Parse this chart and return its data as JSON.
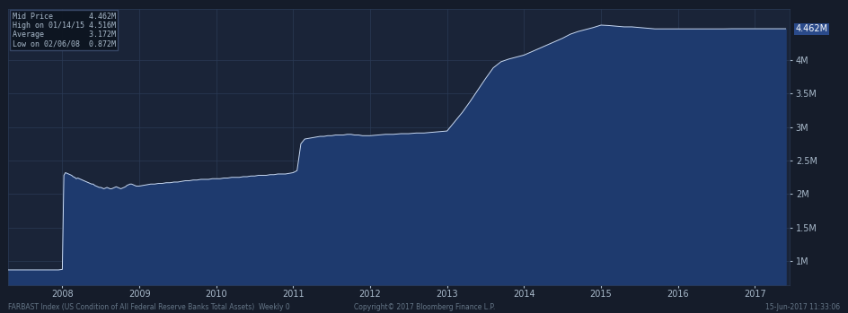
{
  "background_color": "#151c2a",
  "plot_bg_color": "#1a2438",
  "line_color": "#c8d8f0",
  "fill_color": "#1e3a6e",
  "grid_color": "#2a3a55",
  "text_color": "#aabbcc",
  "legend_items": [
    {
      "label": "Mid Price        ",
      "value": "4.462M"
    },
    {
      "label": "High on 01/14/15 ",
      "value": "4.516M"
    },
    {
      "label": "Average          ",
      "value": "3.172M"
    },
    {
      "label": "Low on 02/06/08  ",
      "value": "0.872M"
    }
  ],
  "ylabel_right": "4.462M",
  "yticks": [
    1.0,
    1.5,
    2.0,
    2.5,
    3.0,
    3.5,
    4.0
  ],
  "ylim": [
    0.65,
    4.75
  ],
  "xlabel_bottom": "FARBAST Index (US Condition of All Federal Reserve Banks Total Assets)  Weekly 0",
  "copyright": "Copyright© 2017 Bloomberg Finance L.P.",
  "date_label": "15-Jun-2017 11:33:06",
  "xstart_year": 2007.3,
  "xend_year": 2017.45,
  "xticks": [
    2008,
    2009,
    2010,
    2011,
    2012,
    2013,
    2014,
    2015,
    2016,
    2017
  ],
  "data_x": [
    2007.3,
    2007.35,
    2007.4,
    2007.45,
    2007.5,
    2007.55,
    2007.6,
    2007.65,
    2007.7,
    2007.75,
    2007.8,
    2007.85,
    2007.9,
    2007.95,
    2008.0,
    2008.02,
    2008.04,
    2008.06,
    2008.08,
    2008.1,
    2008.12,
    2008.14,
    2008.16,
    2008.18,
    2008.2,
    2008.22,
    2008.24,
    2008.26,
    2008.28,
    2008.3,
    2008.32,
    2008.34,
    2008.36,
    2008.38,
    2008.4,
    2008.42,
    2008.44,
    2008.46,
    2008.48,
    2008.5,
    2008.52,
    2008.54,
    2008.56,
    2008.58,
    2008.6,
    2008.62,
    2008.64,
    2008.66,
    2008.68,
    2008.7,
    2008.72,
    2008.74,
    2008.76,
    2008.78,
    2008.8,
    2008.82,
    2008.84,
    2008.86,
    2008.88,
    2008.9,
    2008.92,
    2008.94,
    2008.96,
    2008.98,
    2009.0,
    2009.05,
    2009.1,
    2009.15,
    2009.2,
    2009.25,
    2009.3,
    2009.35,
    2009.4,
    2009.45,
    2009.5,
    2009.55,
    2009.6,
    2009.65,
    2009.7,
    2009.75,
    2009.8,
    2009.85,
    2009.9,
    2009.95,
    2010.0,
    2010.05,
    2010.1,
    2010.15,
    2010.2,
    2010.25,
    2010.3,
    2010.35,
    2010.4,
    2010.45,
    2010.5,
    2010.55,
    2010.6,
    2010.65,
    2010.7,
    2010.75,
    2010.8,
    2010.85,
    2010.9,
    2010.95,
    2011.0,
    2011.05,
    2011.1,
    2011.15,
    2011.2,
    2011.25,
    2011.3,
    2011.35,
    2011.4,
    2011.45,
    2011.5,
    2011.55,
    2011.6,
    2011.65,
    2011.7,
    2011.75,
    2011.8,
    2011.85,
    2011.9,
    2011.95,
    2012.0,
    2012.1,
    2012.2,
    2012.3,
    2012.4,
    2012.5,
    2012.6,
    2012.7,
    2012.8,
    2012.9,
    2013.0,
    2013.1,
    2013.2,
    2013.3,
    2013.4,
    2013.5,
    2013.6,
    2013.7,
    2013.8,
    2013.9,
    2014.0,
    2014.1,
    2014.2,
    2014.3,
    2014.4,
    2014.5,
    2014.6,
    2014.7,
    2014.8,
    2014.9,
    2015.0,
    2015.1,
    2015.2,
    2015.3,
    2015.4,
    2015.5,
    2015.6,
    2015.7,
    2015.8,
    2015.9,
    2016.0,
    2016.1,
    2016.2,
    2016.3,
    2016.4,
    2016.5,
    2016.6,
    2016.7,
    2016.8,
    2016.9,
    2017.0,
    2017.1,
    2017.2,
    2017.3,
    2017.4
  ],
  "data_y": [
    0.872,
    0.872,
    0.872,
    0.872,
    0.872,
    0.872,
    0.872,
    0.872,
    0.872,
    0.872,
    0.872,
    0.872,
    0.872,
    0.872,
    0.88,
    2.28,
    2.32,
    2.31,
    2.3,
    2.29,
    2.28,
    2.26,
    2.25,
    2.23,
    2.24,
    2.23,
    2.22,
    2.21,
    2.2,
    2.19,
    2.18,
    2.17,
    2.16,
    2.15,
    2.15,
    2.13,
    2.12,
    2.11,
    2.1,
    2.1,
    2.09,
    2.08,
    2.09,
    2.1,
    2.09,
    2.08,
    2.08,
    2.09,
    2.1,
    2.11,
    2.1,
    2.09,
    2.08,
    2.09,
    2.1,
    2.11,
    2.13,
    2.14,
    2.15,
    2.15,
    2.14,
    2.13,
    2.12,
    2.12,
    2.12,
    2.13,
    2.14,
    2.15,
    2.15,
    2.16,
    2.16,
    2.17,
    2.17,
    2.18,
    2.18,
    2.19,
    2.2,
    2.2,
    2.21,
    2.21,
    2.22,
    2.22,
    2.22,
    2.23,
    2.23,
    2.23,
    2.24,
    2.24,
    2.25,
    2.25,
    2.25,
    2.26,
    2.26,
    2.27,
    2.27,
    2.28,
    2.28,
    2.28,
    2.29,
    2.29,
    2.3,
    2.3,
    2.3,
    2.31,
    2.32,
    2.35,
    2.75,
    2.82,
    2.83,
    2.84,
    2.85,
    2.86,
    2.86,
    2.87,
    2.87,
    2.88,
    2.88,
    2.88,
    2.89,
    2.89,
    2.88,
    2.88,
    2.87,
    2.87,
    2.87,
    2.88,
    2.89,
    2.89,
    2.9,
    2.9,
    2.91,
    2.91,
    2.92,
    2.93,
    2.94,
    3.08,
    3.22,
    3.38,
    3.55,
    3.72,
    3.88,
    3.97,
    4.01,
    4.04,
    4.07,
    4.12,
    4.17,
    4.22,
    4.27,
    4.32,
    4.38,
    4.42,
    4.45,
    4.48,
    4.516,
    4.51,
    4.5,
    4.49,
    4.49,
    4.48,
    4.47,
    4.46,
    4.46,
    4.46,
    4.46,
    4.46,
    4.46,
    4.46,
    4.46,
    4.46,
    4.46,
    4.462,
    4.462,
    4.462,
    4.462,
    4.462,
    4.462,
    4.462,
    4.462
  ]
}
